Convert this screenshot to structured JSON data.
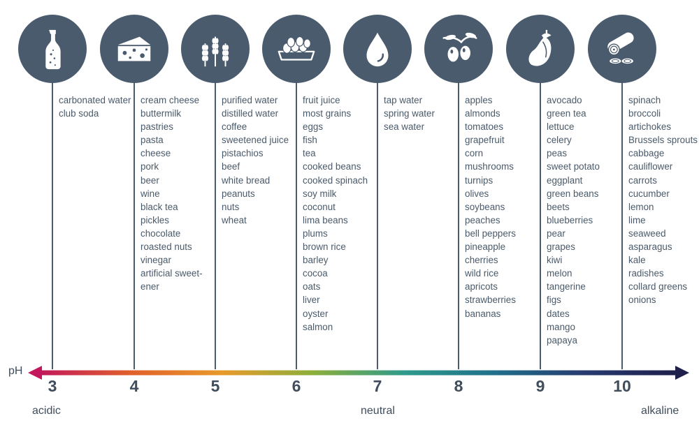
{
  "scale": {
    "axis_label": "pH",
    "acidic_label": "acidic",
    "neutral_label": "neutral",
    "alkaline_label": "alkaline",
    "gradient_colors": [
      "#c2185b",
      "#e0602a",
      "#e89a2a",
      "#8cae3a",
      "#2e9a8a",
      "#1f6f8b",
      "#273a70",
      "#1e1f4a"
    ]
  },
  "columns": [
    {
      "ph": "3",
      "icon": "bottle-icon",
      "items": [
        "carbonated water",
        "club soda"
      ]
    },
    {
      "ph": "4",
      "icon": "cheese-icon",
      "items": [
        "cream cheese",
        "buttermilk",
        "pastries",
        "pasta",
        "cheese",
        "pork",
        "beer",
        "wine",
        "black tea",
        "pickles",
        "chocolate",
        "roasted nuts",
        "vinegar",
        "artificial sweet-",
        "ener"
      ]
    },
    {
      "ph": "5",
      "icon": "wheat-icon",
      "items": [
        "purified water",
        "distilled water",
        "coffee",
        "sweetened juice",
        "pistachios",
        "beef",
        "white bread",
        "peanuts",
        "nuts",
        "wheat"
      ]
    },
    {
      "ph": "6",
      "icon": "eggs-icon",
      "items": [
        "fruit juice",
        "most grains",
        "eggs",
        "fish",
        "tea",
        "cooked beans",
        "cooked spinach",
        "soy milk",
        "coconut",
        "lima beans",
        "plums",
        "brown rice",
        "barley",
        "cocoa",
        "oats",
        "liver",
        "oyster",
        "salmon"
      ]
    },
    {
      "ph": "7",
      "icon": "water-drop-icon",
      "items": [
        "tap water",
        "spring water",
        "sea water"
      ]
    },
    {
      "ph": "8",
      "icon": "olives-icon",
      "items": [
        "apples",
        "almonds",
        "tomatoes",
        "grapefruit",
        "corn",
        "mushrooms",
        "turnips",
        "olives",
        "soybeans",
        "peaches",
        "bell peppers",
        "pineapple",
        "cherries",
        "wild rice",
        "apricots",
        "strawberries",
        "bananas"
      ]
    },
    {
      "ph": "9",
      "icon": "eggplant-icon",
      "items": [
        "avocado",
        "green tea",
        "lettuce",
        "celery",
        "peas",
        "sweet potato",
        "eggplant",
        "green beans",
        "beets",
        "blueberries",
        "pear",
        "grapes",
        "kiwi",
        "melon",
        "tangerine",
        "figs",
        "dates",
        "mango",
        "papaya"
      ]
    },
    {
      "ph": "10",
      "icon": "cucumber-icon",
      "items": [
        "spinach",
        "broccoli",
        "artichokes",
        "Brussels sprouts",
        "cabbage",
        "cauliflower",
        "carrots",
        "cucumber",
        "lemon",
        "lime",
        "seaweed",
        "asparagus",
        "kale",
        "radishes",
        "collard greens",
        "onions"
      ]
    }
  ]
}
